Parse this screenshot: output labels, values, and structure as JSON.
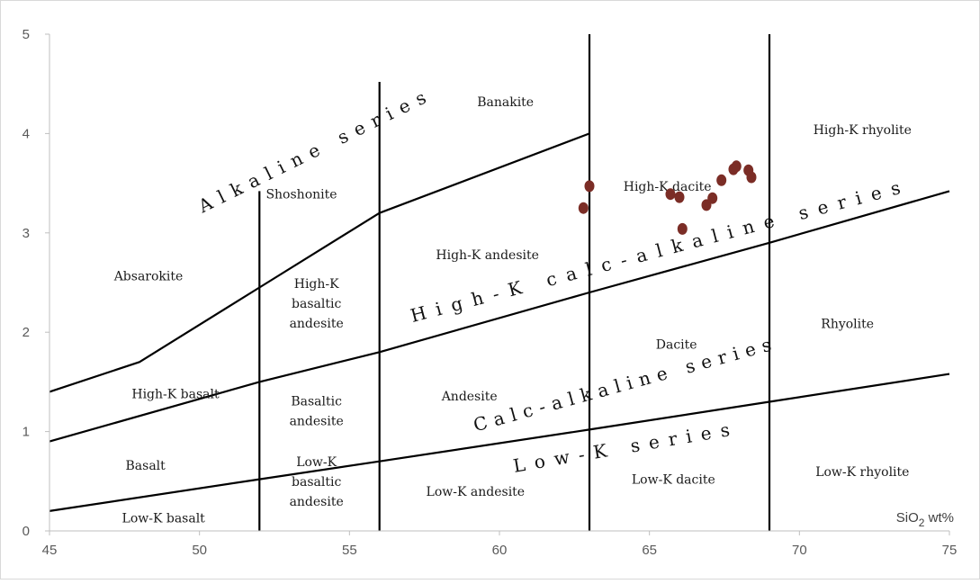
{
  "chart_data": {
    "type": "scatter",
    "title": "",
    "xlabel": "SiO2 wt%",
    "ylabel": "",
    "xlim": [
      45,
      75
    ],
    "ylim": [
      0,
      5
    ],
    "x_ticks": [
      45,
      50,
      55,
      60,
      65,
      70,
      75
    ],
    "y_ticks": [
      0,
      1,
      2,
      3,
      4,
      5
    ],
    "grid": false,
    "axis_unit": {
      "main": "SiO",
      "sub": "2",
      "rest": " wt%"
    },
    "colors": {
      "points": "#7b2d26",
      "lines": "#000000",
      "frame": "#d9d9d9"
    },
    "boundary_lines": [
      [
        [
          45,
          1.4
        ],
        [
          48,
          1.7
        ],
        [
          52,
          2.45
        ],
        [
          56,
          3.2
        ],
        [
          63,
          4.0
        ]
      ],
      [
        [
          45,
          0.9
        ],
        [
          52,
          1.5
        ],
        [
          56,
          1.8
        ],
        [
          63,
          2.4
        ],
        [
          69,
          2.9
        ],
        [
          75,
          3.42
        ]
      ],
      [
        [
          45,
          0.2
        ],
        [
          52,
          0.52
        ],
        [
          56,
          0.7
        ],
        [
          63,
          1.02
        ],
        [
          69,
          1.3
        ],
        [
          75,
          1.58
        ]
      ],
      [
        [
          52,
          0
        ],
        [
          52,
          3.42
        ]
      ],
      [
        [
          56,
          0
        ],
        [
          56,
          4.52
        ]
      ],
      [
        [
          63,
          0
        ],
        [
          63,
          5
        ]
      ],
      [
        [
          69,
          0
        ],
        [
          69,
          5
        ]
      ]
    ],
    "fields": [
      {
        "name": "Banakite",
        "lines": [
          "Banakite"
        ],
        "at": [
          60.2,
          4.32
        ]
      },
      {
        "name": "High-K rhyolite",
        "lines": [
          "High-K rhyolite"
        ],
        "at": [
          72.1,
          4.04
        ]
      },
      {
        "name": "High-K dacite",
        "lines": [
          "High-K dacite"
        ],
        "at": [
          65.6,
          3.47
        ]
      },
      {
        "name": "Shoshonite",
        "lines": [
          "Shoshonite"
        ],
        "at": [
          53.4,
          3.39
        ]
      },
      {
        "name": "High-K andesite",
        "lines": [
          "High-K andesite"
        ],
        "at": [
          59.6,
          2.78
        ]
      },
      {
        "name": "Absarokite",
        "lines": [
          "Absarokite"
        ],
        "at": [
          48.3,
          2.57
        ]
      },
      {
        "name": "High-K basaltic andesite",
        "lines": [
          "High-K",
          "basaltic",
          "andesite"
        ],
        "at": [
          53.9,
          2.29
        ]
      },
      {
        "name": "Rhyolite",
        "lines": [
          "Rhyolite"
        ],
        "at": [
          71.6,
          2.09
        ]
      },
      {
        "name": "Dacite",
        "lines": [
          "Dacite"
        ],
        "at": [
          65.9,
          1.88
        ]
      },
      {
        "name": "High-K basalt",
        "lines": [
          "High-K basalt"
        ],
        "at": [
          49.2,
          1.38
        ]
      },
      {
        "name": "Andesite",
        "lines": [
          "Andesite"
        ],
        "at": [
          59.0,
          1.36
        ]
      },
      {
        "name": "Basaltic andesite",
        "lines": [
          "Basaltic",
          "andesite"
        ],
        "at": [
          53.9,
          1.21
        ]
      },
      {
        "name": "Basalt",
        "lines": [
          "Basalt"
        ],
        "at": [
          48.2,
          0.66
        ]
      },
      {
        "name": "Low-K dacite",
        "lines": [
          "Low-K dacite"
        ],
        "at": [
          65.8,
          0.52
        ]
      },
      {
        "name": "Low-K rhyolite",
        "lines": [
          "Low-K rhyolite"
        ],
        "at": [
          72.1,
          0.6
        ]
      },
      {
        "name": "Low-K basaltic andesite",
        "lines": [
          "Low-K",
          "basaltic",
          "andesite"
        ],
        "at": [
          53.9,
          0.5
        ]
      },
      {
        "name": "Low-K andesite",
        "lines": [
          "Low-K andesite"
        ],
        "at": [
          59.2,
          0.4
        ]
      },
      {
        "name": "Low-K basalt",
        "lines": [
          "Low-K basalt"
        ],
        "at": [
          48.8,
          0.13
        ]
      }
    ],
    "series_labels": [
      {
        "text": "Alkaline series",
        "from": [
          50.1,
          3.2
        ],
        "to": [
          57.6,
          4.32
        ]
      },
      {
        "text": "High-K calc-alkaline series",
        "from": [
          57.1,
          2.1
        ],
        "to": [
          73.4,
          3.4
        ]
      },
      {
        "text": "Calc-alkaline series",
        "from": [
          59.2,
          1.0
        ],
        "to": [
          69.1,
          1.82
        ]
      },
      {
        "text": "Low-K series",
        "from": [
          60.5,
          0.59
        ],
        "to": [
          67.7,
          0.96
        ]
      }
    ],
    "points": [
      {
        "x": 62.8,
        "y": 3.25
      },
      {
        "x": 63.0,
        "y": 3.47
      },
      {
        "x": 65.7,
        "y": 3.39
      },
      {
        "x": 66.0,
        "y": 3.36
      },
      {
        "x": 66.1,
        "y": 3.04
      },
      {
        "x": 66.9,
        "y": 3.28
      },
      {
        "x": 67.1,
        "y": 3.35
      },
      {
        "x": 67.4,
        "y": 3.53
      },
      {
        "x": 67.8,
        "y": 3.64
      },
      {
        "x": 67.9,
        "y": 3.67
      },
      {
        "x": 68.3,
        "y": 3.63
      },
      {
        "x": 68.4,
        "y": 3.56
      }
    ]
  }
}
